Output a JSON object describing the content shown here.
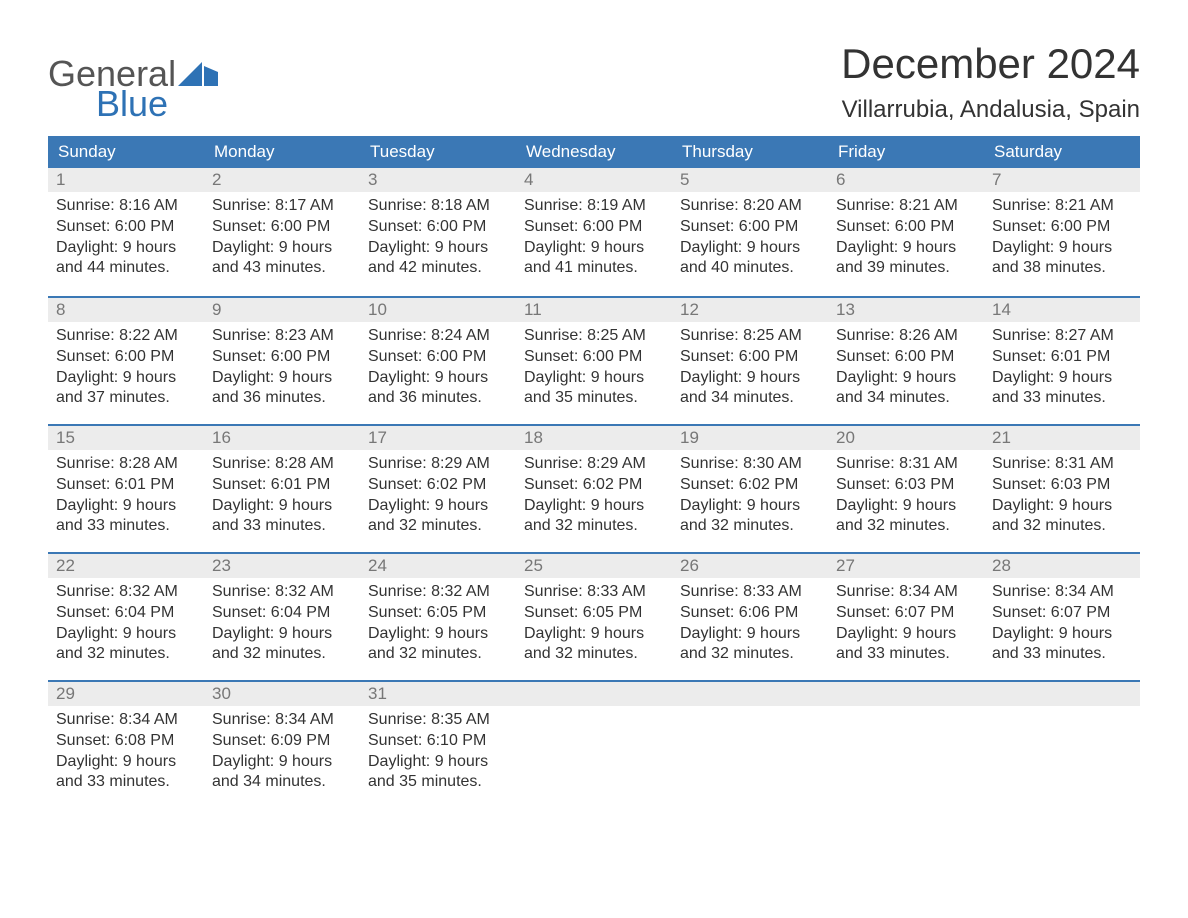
{
  "logo": {
    "text1": "General",
    "text2": "Blue",
    "flag_color": "#2e72b5",
    "text1_color": "#555555"
  },
  "title": "December 2024",
  "location": "Villarrubia, Andalusia, Spain",
  "colors": {
    "header_bg": "#3b78b5",
    "header_text": "#ffffff",
    "daynum_bg": "#ececec",
    "daynum_text": "#777777",
    "week_border": "#3b78b5",
    "body_text": "#333333",
    "background": "#ffffff"
  },
  "weekdays": [
    "Sunday",
    "Monday",
    "Tuesday",
    "Wednesday",
    "Thursday",
    "Friday",
    "Saturday"
  ],
  "weeks": [
    [
      {
        "n": "1",
        "sunrise": "Sunrise: 8:16 AM",
        "sunset": "Sunset: 6:00 PM",
        "d1": "Daylight: 9 hours",
        "d2": "and 44 minutes."
      },
      {
        "n": "2",
        "sunrise": "Sunrise: 8:17 AM",
        "sunset": "Sunset: 6:00 PM",
        "d1": "Daylight: 9 hours",
        "d2": "and 43 minutes."
      },
      {
        "n": "3",
        "sunrise": "Sunrise: 8:18 AM",
        "sunset": "Sunset: 6:00 PM",
        "d1": "Daylight: 9 hours",
        "d2": "and 42 minutes."
      },
      {
        "n": "4",
        "sunrise": "Sunrise: 8:19 AM",
        "sunset": "Sunset: 6:00 PM",
        "d1": "Daylight: 9 hours",
        "d2": "and 41 minutes."
      },
      {
        "n": "5",
        "sunrise": "Sunrise: 8:20 AM",
        "sunset": "Sunset: 6:00 PM",
        "d1": "Daylight: 9 hours",
        "d2": "and 40 minutes."
      },
      {
        "n": "6",
        "sunrise": "Sunrise: 8:21 AM",
        "sunset": "Sunset: 6:00 PM",
        "d1": "Daylight: 9 hours",
        "d2": "and 39 minutes."
      },
      {
        "n": "7",
        "sunrise": "Sunrise: 8:21 AM",
        "sunset": "Sunset: 6:00 PM",
        "d1": "Daylight: 9 hours",
        "d2": "and 38 minutes."
      }
    ],
    [
      {
        "n": "8",
        "sunrise": "Sunrise: 8:22 AM",
        "sunset": "Sunset: 6:00 PM",
        "d1": "Daylight: 9 hours",
        "d2": "and 37 minutes."
      },
      {
        "n": "9",
        "sunrise": "Sunrise: 8:23 AM",
        "sunset": "Sunset: 6:00 PM",
        "d1": "Daylight: 9 hours",
        "d2": "and 36 minutes."
      },
      {
        "n": "10",
        "sunrise": "Sunrise: 8:24 AM",
        "sunset": "Sunset: 6:00 PM",
        "d1": "Daylight: 9 hours",
        "d2": "and 36 minutes."
      },
      {
        "n": "11",
        "sunrise": "Sunrise: 8:25 AM",
        "sunset": "Sunset: 6:00 PM",
        "d1": "Daylight: 9 hours",
        "d2": "and 35 minutes."
      },
      {
        "n": "12",
        "sunrise": "Sunrise: 8:25 AM",
        "sunset": "Sunset: 6:00 PM",
        "d1": "Daylight: 9 hours",
        "d2": "and 34 minutes."
      },
      {
        "n": "13",
        "sunrise": "Sunrise: 8:26 AM",
        "sunset": "Sunset: 6:00 PM",
        "d1": "Daylight: 9 hours",
        "d2": "and 34 minutes."
      },
      {
        "n": "14",
        "sunrise": "Sunrise: 8:27 AM",
        "sunset": "Sunset: 6:01 PM",
        "d1": "Daylight: 9 hours",
        "d2": "and 33 minutes."
      }
    ],
    [
      {
        "n": "15",
        "sunrise": "Sunrise: 8:28 AM",
        "sunset": "Sunset: 6:01 PM",
        "d1": "Daylight: 9 hours",
        "d2": "and 33 minutes."
      },
      {
        "n": "16",
        "sunrise": "Sunrise: 8:28 AM",
        "sunset": "Sunset: 6:01 PM",
        "d1": "Daylight: 9 hours",
        "d2": "and 33 minutes."
      },
      {
        "n": "17",
        "sunrise": "Sunrise: 8:29 AM",
        "sunset": "Sunset: 6:02 PM",
        "d1": "Daylight: 9 hours",
        "d2": "and 32 minutes."
      },
      {
        "n": "18",
        "sunrise": "Sunrise: 8:29 AM",
        "sunset": "Sunset: 6:02 PM",
        "d1": "Daylight: 9 hours",
        "d2": "and 32 minutes."
      },
      {
        "n": "19",
        "sunrise": "Sunrise: 8:30 AM",
        "sunset": "Sunset: 6:02 PM",
        "d1": "Daylight: 9 hours",
        "d2": "and 32 minutes."
      },
      {
        "n": "20",
        "sunrise": "Sunrise: 8:31 AM",
        "sunset": "Sunset: 6:03 PM",
        "d1": "Daylight: 9 hours",
        "d2": "and 32 minutes."
      },
      {
        "n": "21",
        "sunrise": "Sunrise: 8:31 AM",
        "sunset": "Sunset: 6:03 PM",
        "d1": "Daylight: 9 hours",
        "d2": "and 32 minutes."
      }
    ],
    [
      {
        "n": "22",
        "sunrise": "Sunrise: 8:32 AM",
        "sunset": "Sunset: 6:04 PM",
        "d1": "Daylight: 9 hours",
        "d2": "and 32 minutes."
      },
      {
        "n": "23",
        "sunrise": "Sunrise: 8:32 AM",
        "sunset": "Sunset: 6:04 PM",
        "d1": "Daylight: 9 hours",
        "d2": "and 32 minutes."
      },
      {
        "n": "24",
        "sunrise": "Sunrise: 8:32 AM",
        "sunset": "Sunset: 6:05 PM",
        "d1": "Daylight: 9 hours",
        "d2": "and 32 minutes."
      },
      {
        "n": "25",
        "sunrise": "Sunrise: 8:33 AM",
        "sunset": "Sunset: 6:05 PM",
        "d1": "Daylight: 9 hours",
        "d2": "and 32 minutes."
      },
      {
        "n": "26",
        "sunrise": "Sunrise: 8:33 AM",
        "sunset": "Sunset: 6:06 PM",
        "d1": "Daylight: 9 hours",
        "d2": "and 32 minutes."
      },
      {
        "n": "27",
        "sunrise": "Sunrise: 8:34 AM",
        "sunset": "Sunset: 6:07 PM",
        "d1": "Daylight: 9 hours",
        "d2": "and 33 minutes."
      },
      {
        "n": "28",
        "sunrise": "Sunrise: 8:34 AM",
        "sunset": "Sunset: 6:07 PM",
        "d1": "Daylight: 9 hours",
        "d2": "and 33 minutes."
      }
    ],
    [
      {
        "n": "29",
        "sunrise": "Sunrise: 8:34 AM",
        "sunset": "Sunset: 6:08 PM",
        "d1": "Daylight: 9 hours",
        "d2": "and 33 minutes."
      },
      {
        "n": "30",
        "sunrise": "Sunrise: 8:34 AM",
        "sunset": "Sunset: 6:09 PM",
        "d1": "Daylight: 9 hours",
        "d2": "and 34 minutes."
      },
      {
        "n": "31",
        "sunrise": "Sunrise: 8:35 AM",
        "sunset": "Sunset: 6:10 PM",
        "d1": "Daylight: 9 hours",
        "d2": "and 35 minutes."
      },
      null,
      null,
      null,
      null
    ]
  ]
}
